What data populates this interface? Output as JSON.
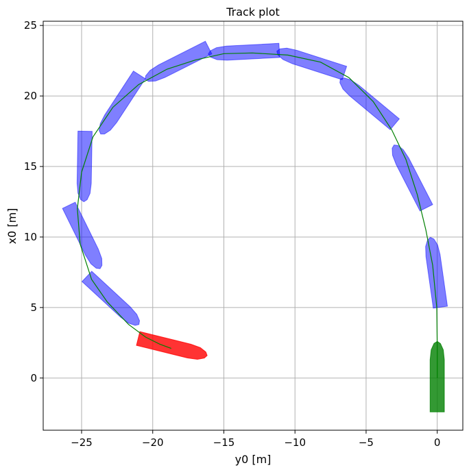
{
  "chart_data": {
    "type": "track-plot",
    "title": "Track plot",
    "xlabel": "y0 [m]",
    "ylabel": "x0 [m]",
    "xlim": [
      -27.7,
      1.8
    ],
    "ylim": [
      -3.7,
      25.3
    ],
    "xticks": [
      -25,
      -20,
      -15,
      -10,
      -5,
      0
    ],
    "yticks": [
      0,
      5,
      10,
      15,
      20,
      25
    ],
    "grid": true,
    "colors": {
      "track": "#008000",
      "intermediate_hull": "#0000ff",
      "start_hull": "#008000",
      "end_hull": "#ff0000"
    },
    "hull": {
      "length": 5.0,
      "beam": 1.0
    },
    "track": [
      {
        "y": 0.0,
        "x": 0.0
      },
      {
        "y": 0.0,
        "x": 2.0
      },
      {
        "y": -0.03,
        "x": 5.0
      },
      {
        "y": -0.32,
        "x": 8.0
      },
      {
        "y": -0.8,
        "x": 10.5
      },
      {
        "y": -1.4,
        "x": 13.0
      },
      {
        "y": -2.2,
        "x": 15.5
      },
      {
        "y": -3.2,
        "x": 17.6
      },
      {
        "y": -4.5,
        "x": 19.6
      },
      {
        "y": -6.2,
        "x": 21.3
      },
      {
        "y": -8.2,
        "x": 22.4
      },
      {
        "y": -10.5,
        "x": 22.9
      },
      {
        "y": -13.0,
        "x": 23.05
      },
      {
        "y": -15.0,
        "x": 23.0
      },
      {
        "y": -17.0,
        "x": 22.55
      },
      {
        "y": -19.0,
        "x": 21.9
      },
      {
        "y": -21.0,
        "x": 20.8
      },
      {
        "y": -22.8,
        "x": 19.2
      },
      {
        "y": -24.2,
        "x": 17.1
      },
      {
        "y": -25.0,
        "x": 14.6
      },
      {
        "y": -25.3,
        "x": 12.0
      },
      {
        "y": -25.1,
        "x": 9.5
      },
      {
        "y": -24.3,
        "x": 7.0
      },
      {
        "y": -23.2,
        "x": 5.4
      },
      {
        "y": -21.7,
        "x": 3.8
      },
      {
        "y": -20.5,
        "x": 2.9
      },
      {
        "y": -19.5,
        "x": 2.4
      },
      {
        "y": -18.7,
        "x": 2.1
      }
    ],
    "ships": [
      {
        "role": "start",
        "y": 0.0,
        "x": 0.1,
        "heading": 0
      },
      {
        "role": "intermediate",
        "y": -0.13,
        "x": 7.5,
        "heading": -8
      },
      {
        "role": "intermediate",
        "y": -1.9,
        "x": 14.3,
        "heading": -27
      },
      {
        "role": "intermediate",
        "y": -4.9,
        "x": 19.6,
        "heading": -50
      },
      {
        "role": "intermediate",
        "y": -8.9,
        "x": 22.4,
        "heading": -72
      },
      {
        "role": "intermediate",
        "y": -13.6,
        "x": 23.1,
        "heading": -93
      },
      {
        "role": "intermediate",
        "y": -18.3,
        "x": 22.3,
        "heading": -117
      },
      {
        "role": "intermediate",
        "y": -22.3,
        "x": 19.4,
        "heading": -147
      },
      {
        "role": "intermediate",
        "y": -24.8,
        "x": 15.0,
        "heading": -179
      },
      {
        "role": "intermediate",
        "y": -24.8,
        "x": 10.0,
        "heading": -206
      },
      {
        "role": "intermediate",
        "y": -22.8,
        "x": 5.5,
        "heading": -227
      },
      {
        "role": "end",
        "y": -18.6,
        "x": 2.2,
        "heading": -256
      }
    ]
  }
}
